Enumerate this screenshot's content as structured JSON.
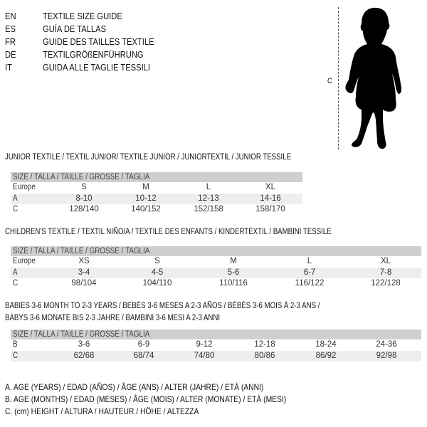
{
  "languages": [
    {
      "code": "EN",
      "title": "TEXTILE SIZE GUIDE"
    },
    {
      "code": "ES",
      "title": "GUÍA DE TALLAS"
    },
    {
      "code": "FR",
      "title": "GUIDE DES TAILLES TEXTILE"
    },
    {
      "code": "DE",
      "title": "TEXTILGRÖßENFÜHRUNG"
    },
    {
      "code": "IT",
      "title": "GUIDA ALLE TAGLIE TESSILI"
    }
  ],
  "figure": {
    "measure_label": "C",
    "icon": "child-silhouette"
  },
  "size_header": "SIZE / TALLA / TAILLE / GRÖSSE / TAGLIA",
  "junior": {
    "title": "JUNIOR TEXTILE / TEXTIL JUNIOR/ TEXTILE JUNIOR / JUNIORTEXTIL / JUNIOR TESSILE",
    "rows": [
      {
        "label": "Europe",
        "values": [
          "S",
          "M",
          "L",
          "XL"
        ]
      },
      {
        "label": "A",
        "values": [
          "8-10",
          "10-12",
          "12-13",
          "14-16"
        ]
      },
      {
        "label": "C",
        "values": [
          "128/140",
          "140/152",
          "152/158",
          "158/170"
        ]
      }
    ]
  },
  "children": {
    "title": "CHILDREN'S TEXTILE / TEXTIL NIÑO/A / TEXTILE DES ENFANTS / KINDERTEXTIL / BAMBINI TESSILE",
    "rows": [
      {
        "label": "Europe",
        "values": [
          "XS",
          "S",
          "M",
          "L",
          "XL"
        ]
      },
      {
        "label": "A",
        "values": [
          "3-4",
          "4-5",
          "5-6",
          "6-7",
          "7-8"
        ]
      },
      {
        "label": "C",
        "values": [
          "98/104",
          "104/110",
          "110/116",
          "116/122",
          "122/128"
        ]
      }
    ]
  },
  "babies": {
    "title_line1": "BABIES 3-6 MONTH TO 2-3 YEARS / BEBÉS 3-6 MESES A 2-3 AÑOS / BÉBÉS 3-6 MOIS À 2-3 ANS /",
    "title_line2": "BABYS 3-6 MONATE BIS 2-3 JAHRE / BAMBINI 3-6 MESI A 2-3 ANNI",
    "rows": [
      {
        "label": "B",
        "values": [
          "3-6",
          "6-9",
          "9-12",
          "12-18",
          "18-24",
          "24-36"
        ]
      },
      {
        "label": "C",
        "values": [
          "62/68",
          "68/74",
          "74/80",
          "80/86",
          "86/92",
          "92/98"
        ]
      }
    ]
  },
  "legend": [
    "A. AGE (YEARS) / EDAD (AÑOS) / ÂGE (ANS) / ALTER (JAHRE) / ETÀ (ANNI)",
    "B. AGE (MONTHS) / EDAD (MESES) / ÂGE (MOIS) / ALTER (MONATE) / ETÀ (MESI)",
    "C. (cm) HEIGHT / ALTURA / HAUTEUR / HÖHE / ALTEZZA"
  ]
}
